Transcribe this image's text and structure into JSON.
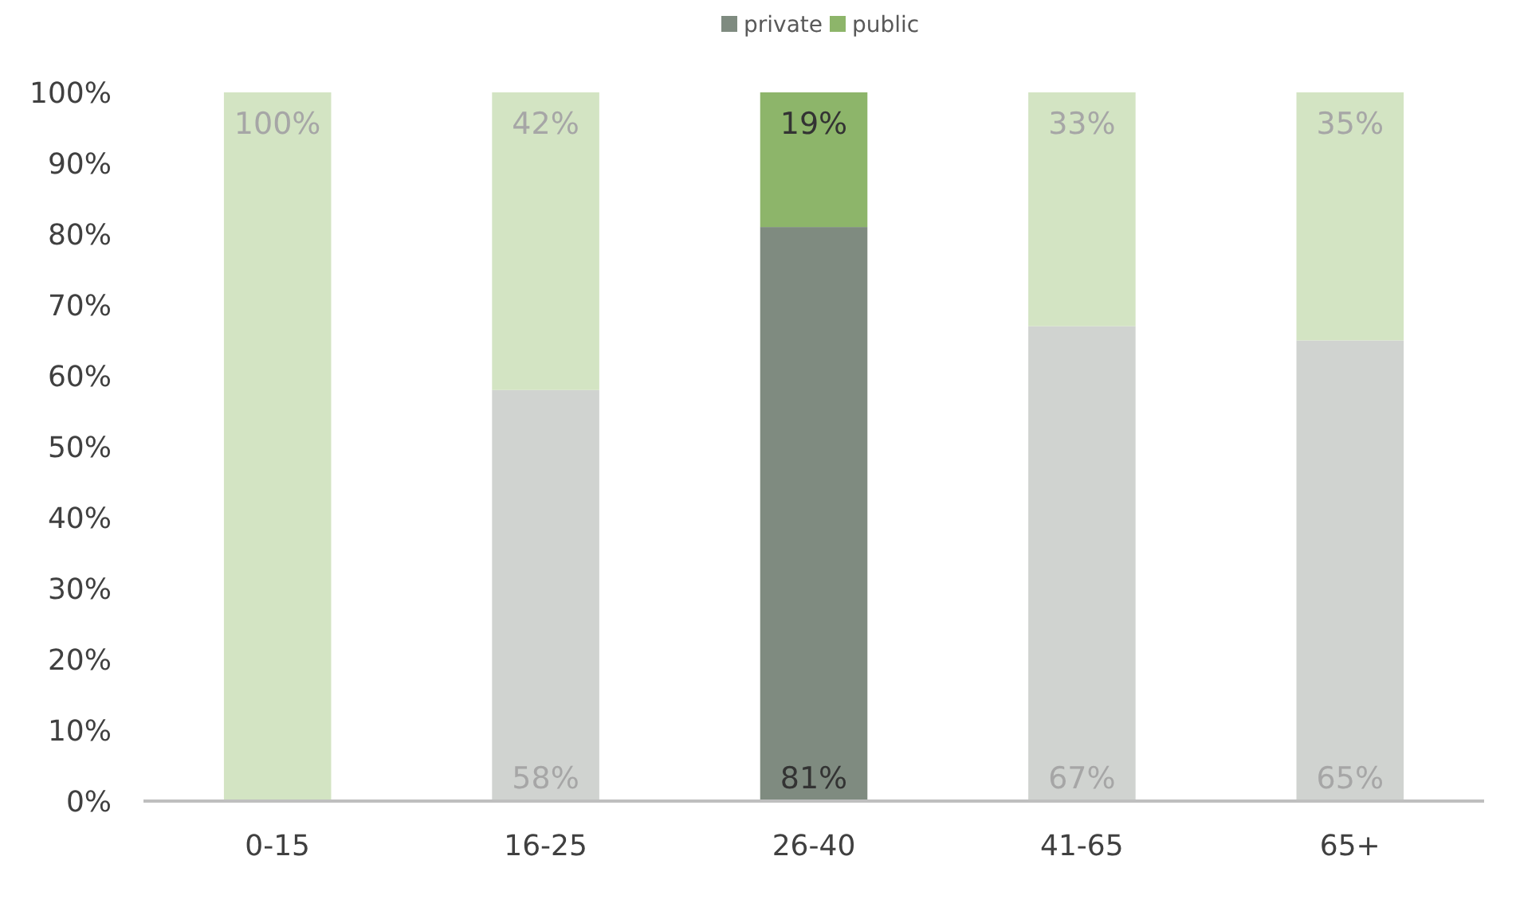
{
  "chart_data": {
    "type": "bar",
    "stacked": true,
    "categories": [
      "0-15",
      "16-25",
      "26-40",
      "41-65",
      "65+"
    ],
    "series": [
      {
        "name": "private",
        "color": "#7f8b80",
        "colors": [
          "#d0d3d0",
          "#d0d3d0",
          "#7f8b80",
          "#d0d3d0",
          "#d0d3d0"
        ],
        "values": [
          0,
          58,
          81,
          67,
          65
        ],
        "value_labels": [
          null,
          "58%",
          "81%",
          "67%",
          "65%"
        ]
      },
      {
        "name": "public",
        "color": "#8db56a",
        "colors": [
          "#d3e4c3",
          "#d3e4c3",
          "#8db56a",
          "#d3e4c3",
          "#d3e4c3"
        ],
        "values": [
          100,
          42,
          19,
          33,
          35
        ],
        "value_labels": [
          "100%",
          "42%",
          "19%",
          "33%",
          "35%"
        ]
      }
    ],
    "ylim": [
      0,
      100
    ],
    "yticks": [
      {
        "value": 0,
        "label": "0%"
      },
      {
        "value": 10,
        "label": "10%"
      },
      {
        "value": 20,
        "label": "20%"
      },
      {
        "value": 30,
        "label": "30%"
      },
      {
        "value": 40,
        "label": "40%"
      },
      {
        "value": 50,
        "label": "50%"
      },
      {
        "value": 60,
        "label": "60%"
      },
      {
        "value": 70,
        "label": "70%"
      },
      {
        "value": 80,
        "label": "80%"
      },
      {
        "value": 90,
        "label": "90%"
      },
      {
        "value": 100,
        "label": "100%"
      }
    ],
    "grid": false,
    "legend": "top"
  }
}
